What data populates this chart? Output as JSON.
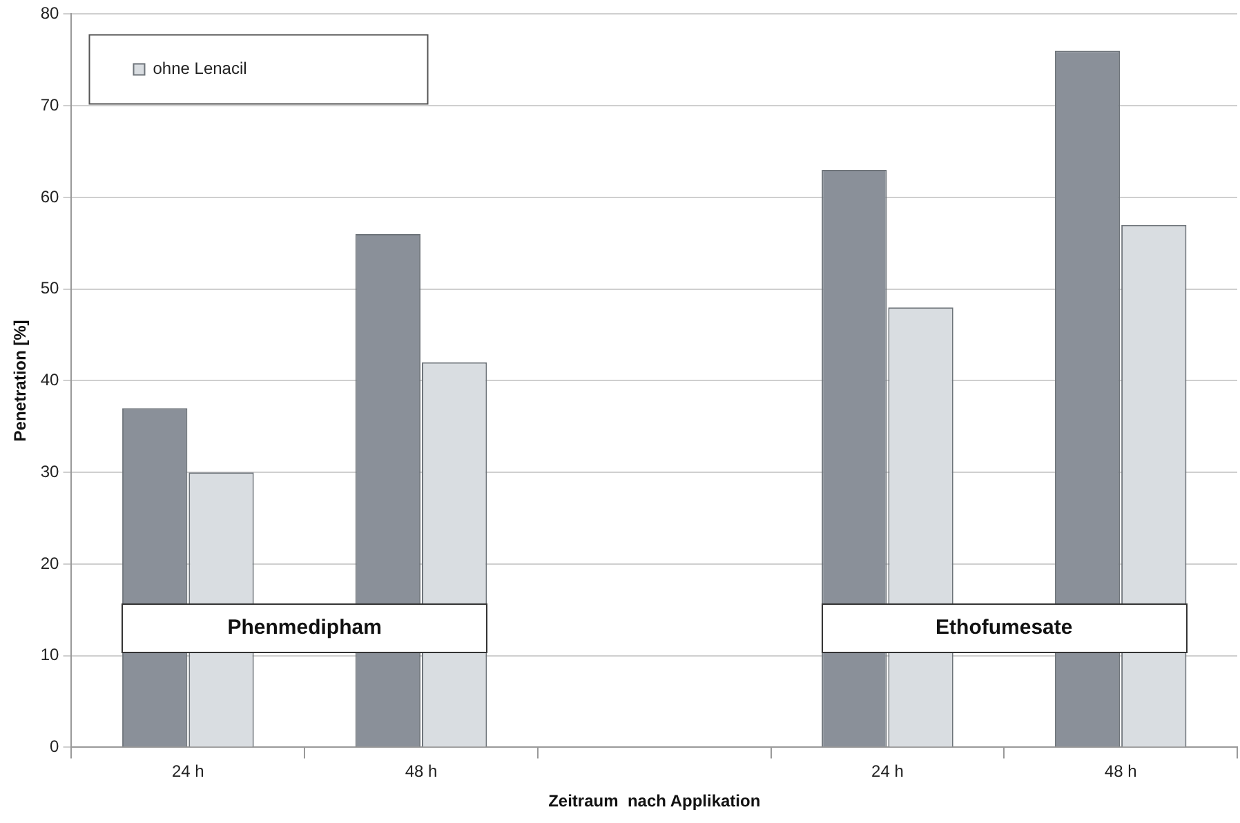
{
  "chart_data": {
    "type": "bar",
    "xlabel": "Zeitraum  nach Applikation",
    "ylabel": "Penetration [%]",
    "categories": [
      "24 h",
      "48 h",
      null,
      "24 h",
      "48 h"
    ],
    "series": [
      {
        "color": "#8a9099",
        "values": [
          37,
          56,
          null,
          63,
          76
        ]
      },
      {
        "name": "ohne Lenacil",
        "color": "#d9dde1",
        "values": [
          30,
          42,
          null,
          48,
          57
        ]
      }
    ],
    "ylim": [
      0,
      80
    ],
    "yticks": [
      0,
      10,
      20,
      30,
      40,
      50,
      60,
      70,
      80
    ],
    "grid": "y",
    "legend": "top left",
    "annotations": [
      "Phenmedipham",
      "Ethofumesate"
    ]
  }
}
